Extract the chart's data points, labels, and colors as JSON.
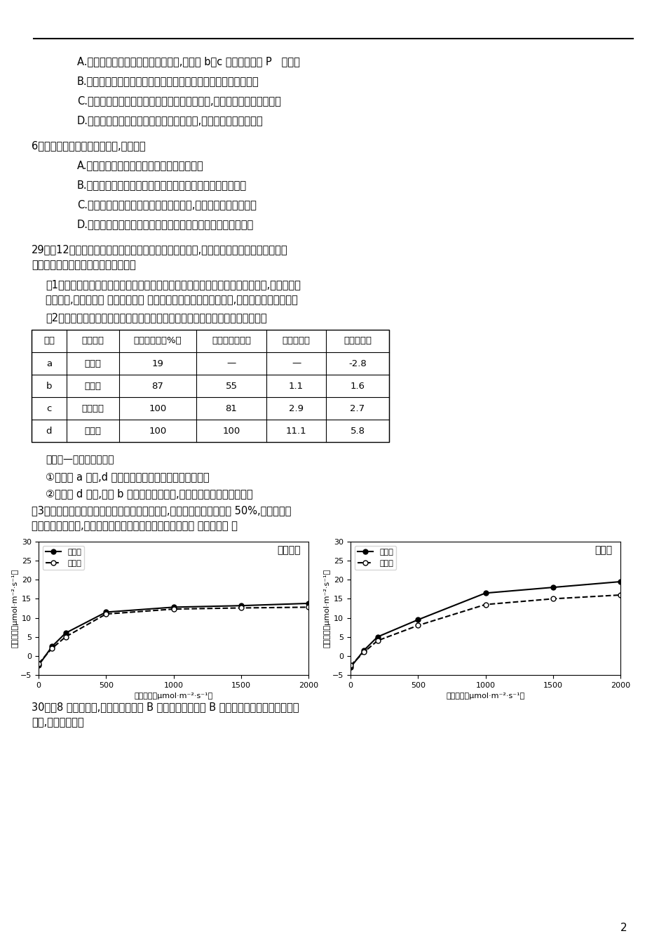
{
  "top_line_y": 0.965,
  "page_number": "2",
  "q5_options": [
    "A.　甲图示生长素的生理作用两重性,图乙中 b、c 点与图甲对应 P   値相同",
    "B.　乙图中茎的背地性与胚芽鞘的向光性中生长素的作用机理不同",
    "C.　乙图中根的向地生长与生长素分布不均有关,不能体现生长素的两重性",
    "D.　用不同浓度的生长素溶液处理扆插枝条,生根的数量有可能相同"
  ],
  "q6_header": "6．下列有关生物与环境的叙述,正确的是",
  "q6_options": [
    "A.　负反馈调节不利于生态系统保持相对稳定",
    "B.　无机环境中的物质可以通过多种途径被生物群落反复利用",
    "C.　生产者固定的能量除用于自身呼吸外,其余均流入下一营养级",
    "D.　黑光灯诱捕的方法可用于探究该农田趋光性昆虫的物种数目"
  ],
  "q29_header": "29．（12分）叶片中叶绻素含量的多少与农作物产量有关,农科系的学生利用小麦开展了下",
  "q29_header2": "列一系列科学研究。请回答相关问题。",
  "q29_1": "（1）叶片叶绻素含量的测定：新鲜叶片研磨时所用的无毒提取液是＿＿＿＿＿＿,为防止叶绻",
  "q29_1b": "素被毁坏,应加入少量 ＿＿＿＿＿＿ 。然后过滤并测定滤液的吸光度,计算得出叶绻素含量。",
  "q29_2": "（2）用同一株小麦不同发育时期的叶片所测定的净光合速率及相关结果如下表。",
  "table_headers": [
    "叶片",
    "发育情况",
    "最大叶面积（%）",
    "气孔相对开放度",
    "叶绻素含量",
    "净光合速率"
  ],
  "table_rows": [
    [
      "a",
      "展开前",
      "19",
      "—",
      "—",
      "-2.8"
    ],
    [
      "b",
      "展开中",
      "87",
      "55",
      "1.1",
      "1.6"
    ],
    [
      "c",
      "展开完成",
      "100",
      "81",
      "2.9",
      "2.7"
    ],
    [
      "d",
      "已成熟",
      "100",
      "100",
      "11.1",
      "5.8"
    ]
  ],
  "note": "（注：—表示未测数据）",
  "q1": "①与叶片 a 相比,d 叶片生长速度较慢的原因是＿＿＿。",
  "q2": "②与叶片 d 相比,叶片 b 的净光合速率较低,原因可能是＿＿＿＿＿＿。",
  "q29_3": "（3）进一步实验研究发现诺变育种所获一种小麦,叶绻素含量是野生型的 50%,但产量与野",
  "q29_3b": "生型水稻相差不大,实验结果如下。请简述此实验的基本思路 ＿＿＿＿＿ 。",
  "graph_left_title": "不施氮肥",
  "graph_right_title": "施氮肥",
  "xlabel": "光照强度（μmol·m⁻²·s⁻¹）",
  "ylabel": "光合速率（μmol·m⁻²·s⁻¹）",
  "xlim": [
    0,
    2000
  ],
  "ylim": [
    -5,
    30
  ],
  "yticks": [
    -5,
    0,
    5,
    10,
    15,
    20,
    25,
    30
  ],
  "xticks": [
    0,
    500,
    1000,
    1500,
    2000
  ],
  "legend_wild": "野生型",
  "legend_mutant": "突变型",
  "left_wild_x": [
    0,
    100,
    200,
    500,
    1000,
    1500,
    2000
  ],
  "left_wild_y": [
    -2.5,
    2.5,
    6.0,
    11.5,
    12.8,
    13.2,
    13.8
  ],
  "left_mutant_x": [
    0,
    100,
    200,
    500,
    1000,
    1500,
    2000
  ],
  "left_mutant_y": [
    -2.0,
    2.0,
    5.0,
    11.0,
    12.3,
    12.6,
    12.8
  ],
  "right_wild_x": [
    0,
    100,
    200,
    500,
    1000,
    1500,
    2000
  ],
  "right_wild_y": [
    -3.0,
    1.5,
    5.0,
    9.5,
    16.5,
    18.0,
    19.5
  ],
  "right_mutant_x": [
    0,
    100,
    200,
    500,
    1000,
    1500,
    2000
  ],
  "right_mutant_y": [
    -2.5,
    1.0,
    4.0,
    8.0,
    13.5,
    15.0,
    16.0
  ],
  "q30_header": "30．（8 分）进食后,葡萄糖进入胰岛 B 细胞所引起的胰岛 B 细胞和组织细胞的一系列生理",
  "q30_header2": "反应,如下图所示。"
}
